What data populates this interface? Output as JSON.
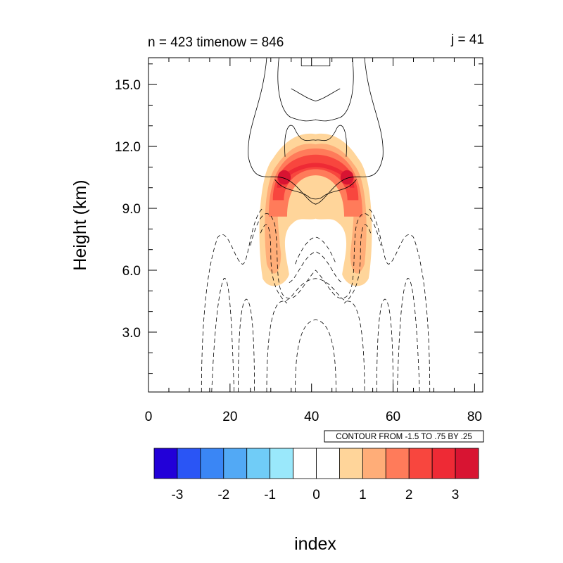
{
  "header": {
    "left_title": "n = 423 timenow = 846",
    "right_title": "j = 41"
  },
  "chart_data": {
    "type": "heatmap",
    "ylabel": "Height (km)",
    "xlabel": "index",
    "xlim": [
      0,
      82
    ],
    "ylim": [
      0.1,
      16.3
    ],
    "x_ticks": [
      "0",
      "20",
      "40",
      "60",
      "80"
    ],
    "y_ticks": [
      "3.0",
      "6.0",
      "9.0",
      "12.0",
      "15.0"
    ],
    "contour_info": "CONTOUR FROM -1.5 TO .75 BY .25",
    "fill_field": {
      "description_units": "index",
      "plume": {
        "center_x": 41,
        "top_y": 12.6,
        "outer_bottom_y": 5.2,
        "half_width": 13
      }
    },
    "colorbar": {
      "labels": [
        "-3",
        "-2",
        "-1",
        "0",
        "1",
        "2",
        "3"
      ],
      "colors": [
        "#2200d8",
        "#2a55f5",
        "#3a86f5",
        "#52a9f5",
        "#70ccf7",
        "#9ae8fb",
        "#ffffff",
        "#ffffff",
        "#ffd59a",
        "#ffad78",
        "#ff7b5a",
        "#f8463e",
        "#ee2a35",
        "#d81432"
      ]
    },
    "grid": false
  }
}
